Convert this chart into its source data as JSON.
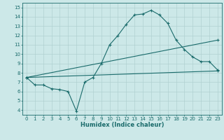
{
  "title": "",
  "xlabel": "Humidex (Indice chaleur)",
  "bg_color": "#cce8e8",
  "grid_color": "#aacccc",
  "line_color": "#1a6b6b",
  "spine_color": "#1a6b6b",
  "xlim": [
    -0.5,
    23.5
  ],
  "ylim": [
    3.5,
    15.5
  ],
  "xticks": [
    0,
    1,
    2,
    3,
    4,
    5,
    6,
    7,
    8,
    9,
    10,
    11,
    12,
    13,
    14,
    15,
    16,
    17,
    18,
    19,
    20,
    21,
    22,
    23
  ],
  "yticks": [
    4,
    5,
    6,
    7,
    8,
    9,
    10,
    11,
    12,
    13,
    14,
    15
  ],
  "line1_x": [
    0,
    1,
    2,
    3,
    4,
    5,
    6,
    7,
    8,
    9,
    10,
    11,
    12,
    13,
    14,
    15,
    16,
    17,
    18,
    19,
    20,
    21,
    22,
    23
  ],
  "line1_y": [
    7.5,
    6.7,
    6.7,
    6.3,
    6.2,
    6.0,
    3.9,
    7.0,
    7.5,
    9.0,
    11.0,
    12.0,
    13.2,
    14.2,
    14.3,
    14.7,
    14.2,
    13.3,
    11.5,
    10.5,
    9.7,
    9.2,
    9.2,
    8.3
  ],
  "line2_x": [
    0,
    23
  ],
  "line2_y": [
    7.5,
    8.2
  ],
  "line3_x": [
    0,
    23
  ],
  "line3_y": [
    7.5,
    11.5
  ],
  "tick_fontsize": 5.0,
  "xlabel_fontsize": 6.0,
  "marker_size": 2.5,
  "line_width": 0.8
}
